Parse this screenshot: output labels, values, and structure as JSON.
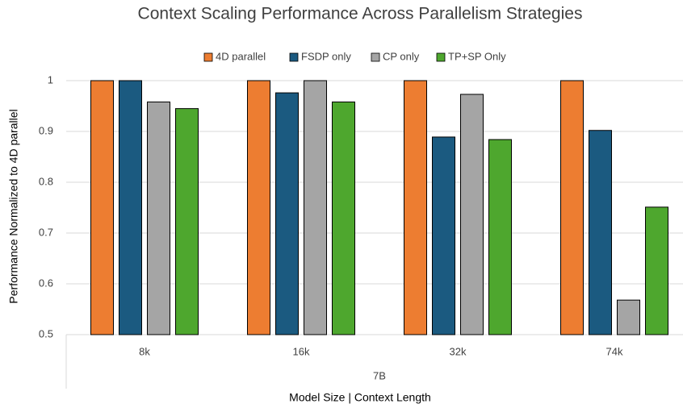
{
  "chart_data": {
    "type": "bar",
    "title": "Context Scaling Performance Across Parallelism Strategies",
    "xlabel": "Model Size | Context Length",
    "ylabel": "Performance Normalized to 4D parallel",
    "group": "7B",
    "categories": [
      "8k",
      "16k",
      "32k",
      "74k"
    ],
    "series": [
      {
        "name": "4D parallel",
        "color": "#ed7d31",
        "values": [
          1,
          1,
          1,
          1
        ]
      },
      {
        "name": "FSDP only",
        "color": "#1b5a80",
        "values": [
          1,
          0.976,
          0.889,
          0.902
        ]
      },
      {
        "name": "CP only",
        "color": "#a5a5a5",
        "values": [
          0.958,
          1,
          0.973,
          0.568
        ]
      },
      {
        "name": "TP+SP Only",
        "color": "#4ea72e",
        "values": [
          0.945,
          0.958,
          0.884,
          0.751
        ]
      }
    ],
    "ylim": [
      0.5,
      1
    ],
    "yticks": [
      0.5,
      0.6,
      0.7,
      0.8,
      0.9,
      1
    ],
    "grid": true,
    "legend": "top"
  }
}
